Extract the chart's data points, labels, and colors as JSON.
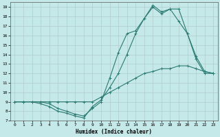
{
  "xlabel": "Humidex (Indice chaleur)",
  "bg_color": "#c5e8e8",
  "grid_color": "#b0cccc",
  "line_color": "#2a7a72",
  "xlim": [
    -0.5,
    23.5
  ],
  "ylim": [
    7,
    19.5
  ],
  "xticks": [
    0,
    1,
    2,
    3,
    4,
    5,
    6,
    7,
    8,
    9,
    10,
    11,
    12,
    13,
    14,
    15,
    16,
    17,
    18,
    19,
    20,
    21,
    22,
    23
  ],
  "yticks": [
    7,
    8,
    9,
    10,
    11,
    12,
    13,
    14,
    15,
    16,
    17,
    18,
    19
  ],
  "line1_x": [
    0,
    1,
    2,
    3,
    4,
    5,
    6,
    7,
    8,
    9,
    10,
    11,
    12,
    13,
    14,
    15,
    16,
    17,
    18,
    19,
    20,
    21,
    22,
    23
  ],
  "line1_y": [
    9,
    9,
    9,
    9,
    9,
    9,
    9,
    9,
    9,
    9,
    9.5,
    10.0,
    10.5,
    11.0,
    11.5,
    12.0,
    12.2,
    12.5,
    12.5,
    12.8,
    12.8,
    12.5,
    12.2,
    12.0
  ],
  "line2_x": [
    0,
    1,
    2,
    3,
    4,
    5,
    6,
    7,
    8,
    9,
    10,
    11,
    12,
    13,
    14,
    15,
    16,
    17,
    18,
    19,
    20,
    21,
    22,
    23
  ],
  "line2_y": [
    9,
    9,
    9,
    8.8,
    8.5,
    8.0,
    7.8,
    7.5,
    7.3,
    8.5,
    9.2,
    10.5,
    12.0,
    14.0,
    16.2,
    17.8,
    19.0,
    18.3,
    18.8,
    17.5,
    16.2,
    13.8,
    12.2,
    12.0
  ],
  "line3_x": [
    0,
    1,
    2,
    3,
    4,
    5,
    6,
    7,
    8,
    9,
    10,
    11,
    12,
    13,
    14,
    15,
    16,
    17,
    18,
    19,
    20,
    21,
    22,
    23
  ],
  "line3_y": [
    9,
    9,
    9,
    9,
    8.8,
    8.3,
    8.0,
    7.7,
    7.5,
    8.3,
    9.0,
    11.5,
    14.2,
    16.2,
    16.5,
    17.8,
    19.2,
    18.5,
    18.8,
    18.8,
    16.2,
    13.5,
    12.0,
    12.0
  ]
}
